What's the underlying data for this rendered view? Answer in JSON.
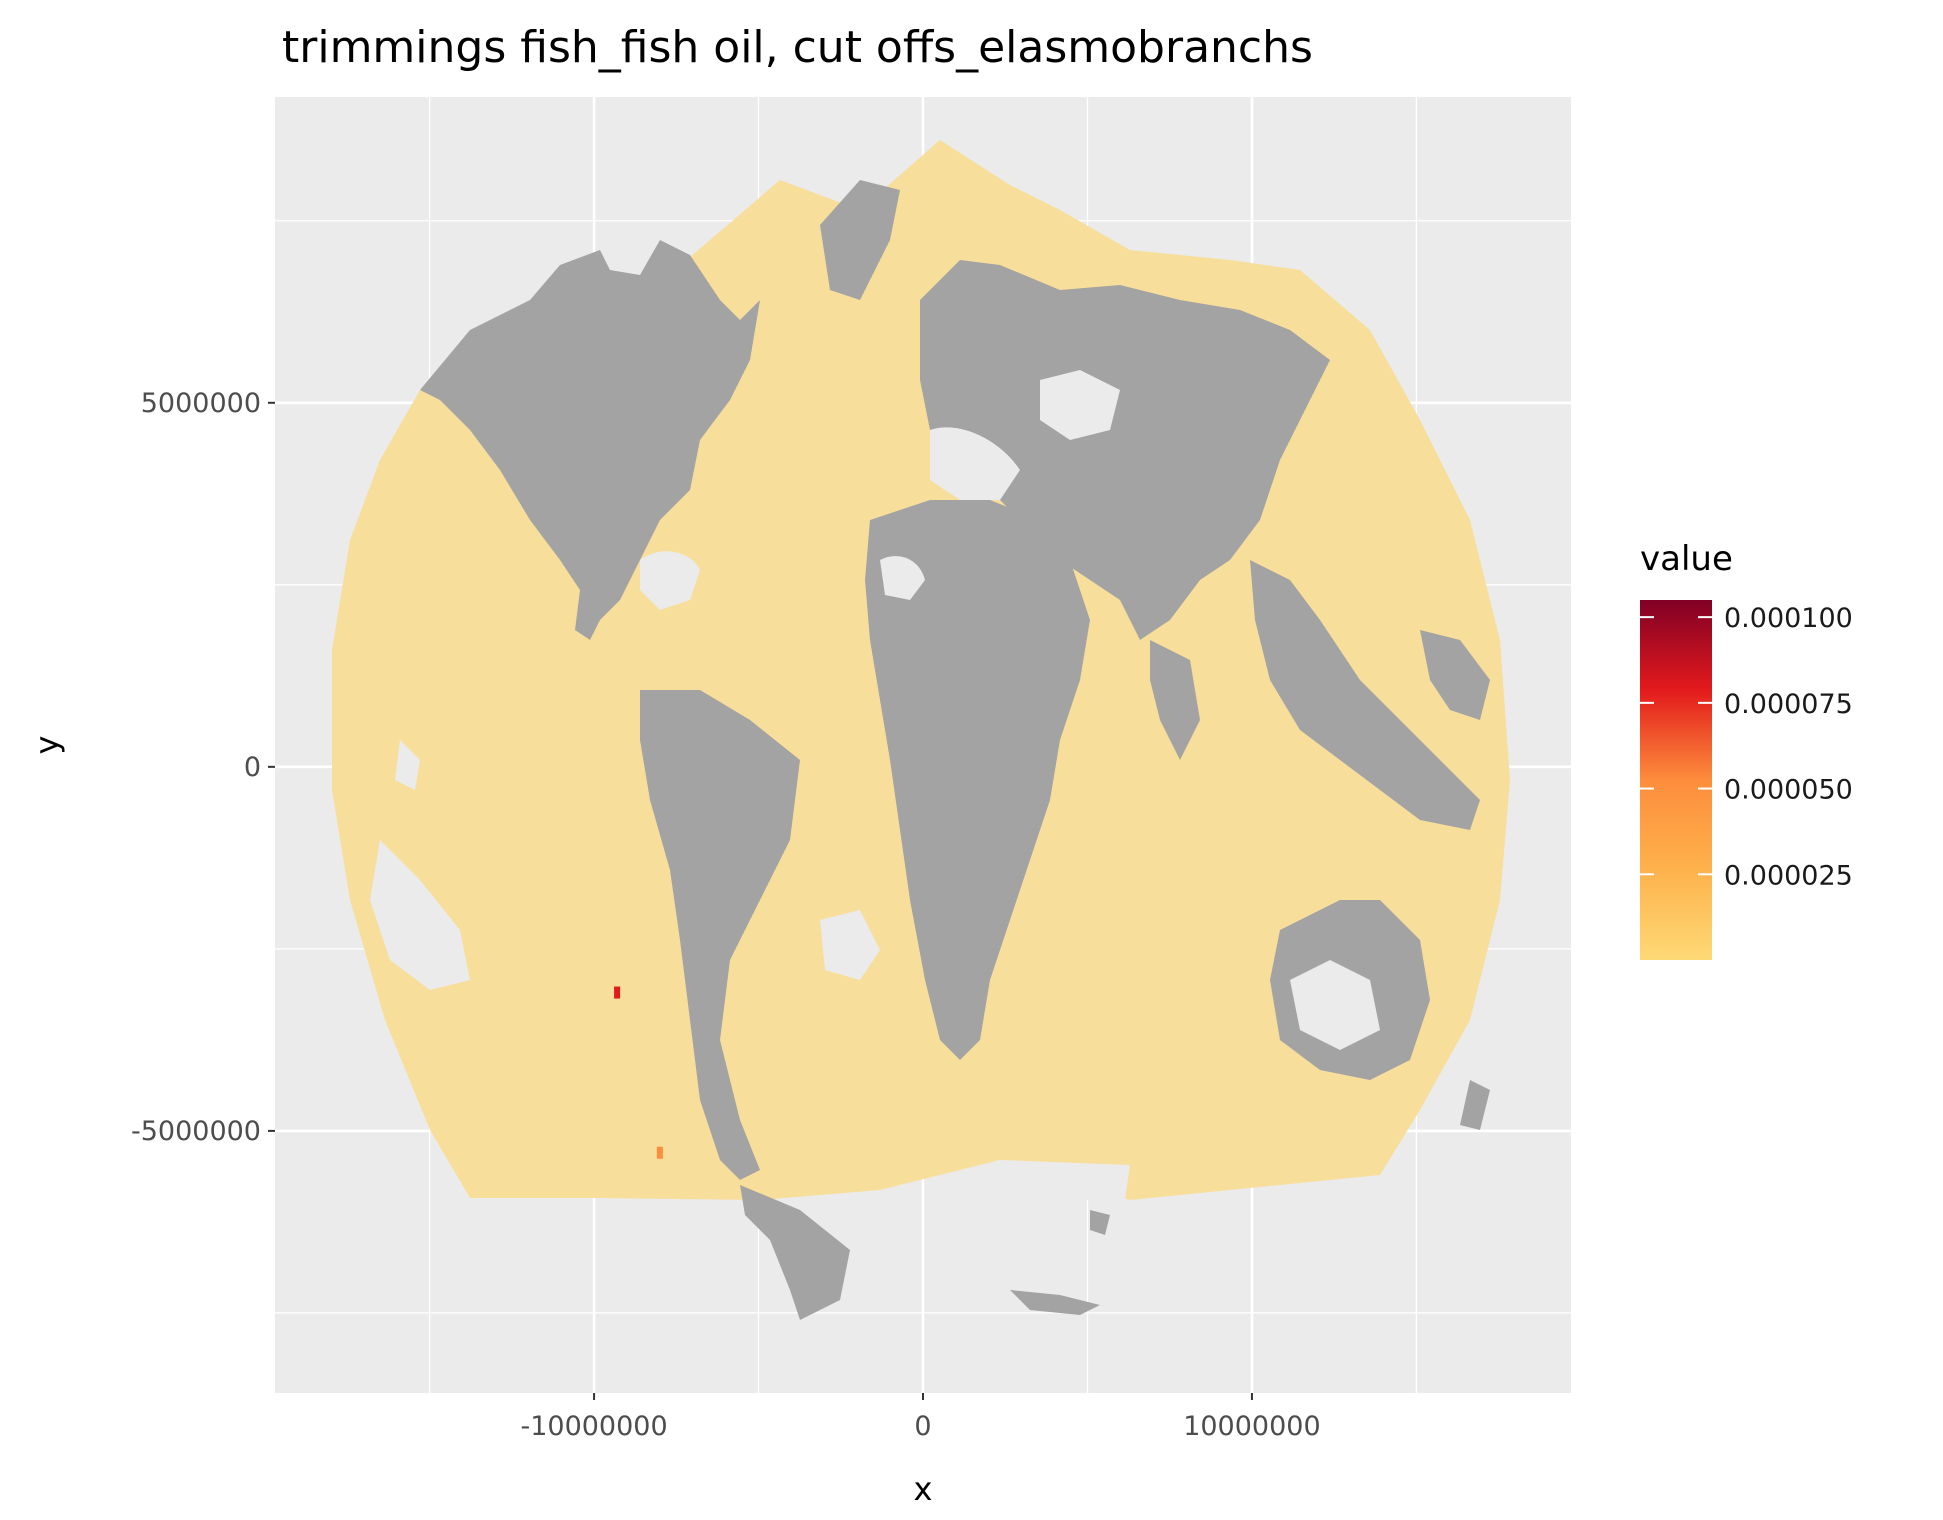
{
  "title": "trimmings fish_fish oil, cut offs_elasmobranchs",
  "colors": {
    "panel_background": "#ebebeb",
    "grid_line": "#ffffff",
    "land": "#a3a3a3",
    "ocean_low": "#f8de9b",
    "scale_low": "#fed976",
    "scale_mid1": "#feb24c",
    "scale_mid2": "#fd8d3c",
    "scale_mid3": "#e31a1c",
    "scale_high": "#800026"
  },
  "chart_data": {
    "type": "heatmap",
    "title": "trimmings fish_fish oil, cut offs_elasmobranchs",
    "xlabel": "x",
    "ylabel": "y",
    "xlim": [
      -19700000,
      19700000
    ],
    "ylim": [
      -8600000,
      9200000
    ],
    "x_ticks": [
      {
        "value": -10000000,
        "label": "-10000000"
      },
      {
        "value": 0,
        "label": "0"
      },
      {
        "value": 10000000,
        "label": "10000000"
      }
    ],
    "y_ticks": [
      {
        "value": 5000000,
        "label": "5000000"
      },
      {
        "value": 0,
        "label": "0"
      },
      {
        "value": -5000000,
        "label": "-5000000"
      }
    ],
    "grid": true,
    "legend": {
      "title": "value",
      "placement": "right",
      "range": [
        0,
        0.000105
      ],
      "breaks": [
        {
          "value": 0.0001,
          "label": "0.000100"
        },
        {
          "value": 7.5e-05,
          "label": "0.000075"
        },
        {
          "value": 5e-05,
          "label": "0.000050"
        },
        {
          "value": 2.5e-05,
          "label": "0.000025"
        }
      ]
    },
    "hotspots": [
      {
        "x": -9300000,
        "y": -3100000,
        "value": 7e-05
      },
      {
        "x": -8000000,
        "y": -5300000,
        "value": 5e-05
      }
    ]
  }
}
